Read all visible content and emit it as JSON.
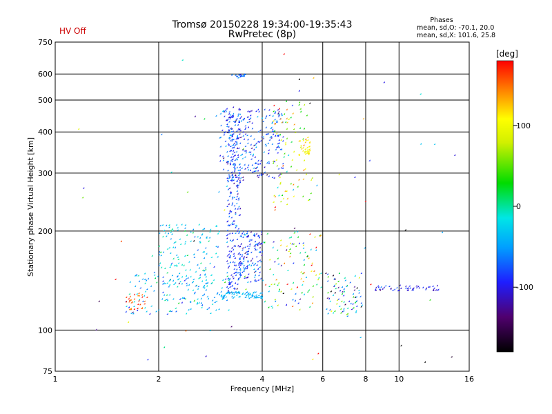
{
  "header": {
    "hv_status": "HV Off",
    "hv_color": "#cc0000",
    "title_line1": "Tromsø 20150228 19:34:00-19:35:43",
    "title_line2": "RwPretec (8p)"
  },
  "phases_box": {
    "label": "Phases",
    "line_o": "mean, sd,O: -70.1, 20.0",
    "line_x": "mean, sd,X: 101.6, 25.8"
  },
  "colorbar": {
    "unit_label": "[deg]",
    "min": -180,
    "max": 180,
    "ticks": [
      {
        "value": 100,
        "label": "100"
      },
      {
        "value": 0,
        "label": "0"
      },
      {
        "value": -100,
        "label": "-100"
      }
    ]
  },
  "chart_data": {
    "type": "scatter",
    "title": "Tromsø 20150228 19:34:00-19:35:43",
    "subtitle": "RwPretec (8p)",
    "xlabel": "Frequency [MHz]",
    "ylabel": "Stationary phase Virtual Height [km]",
    "xscale": "log",
    "yscale": "log",
    "xlim": [
      1,
      16
    ],
    "ylim": [
      75,
      750
    ],
    "grid": true,
    "xticks": [
      {
        "value": 1,
        "label": "1"
      },
      {
        "value": 2,
        "label": "2"
      },
      {
        "value": 4,
        "label": "4"
      },
      {
        "value": 6,
        "label": "6"
      },
      {
        "value": 8,
        "label": "8"
      },
      {
        "value": 10,
        "label": "10"
      },
      {
        "value": 16,
        "label": "16"
      }
    ],
    "yticks": [
      {
        "value": 75,
        "label": "75"
      },
      {
        "value": 100,
        "label": "100"
      },
      {
        "value": 200,
        "label": "200"
      },
      {
        "value": 300,
        "label": "300"
      },
      {
        "value": 400,
        "label": "400"
      },
      {
        "value": 500,
        "label": "500"
      },
      {
        "value": 600,
        "label": "600"
      },
      {
        "value": 750,
        "label": "750"
      }
    ],
    "color_by": "phase [deg]",
    "clusters": [
      {
        "name": "E-region low trace",
        "f_range": [
          1.6,
          3.2
        ],
        "h_range": [
          112,
          150
        ],
        "phase_mean": -40,
        "phase_sd": 30,
        "n": 150
      },
      {
        "name": "E orange patch",
        "f_range": [
          1.6,
          1.85
        ],
        "h_range": [
          115,
          130
        ],
        "phase_mean": 160,
        "phase_sd": 15,
        "n": 30
      },
      {
        "name": "F1 ramp",
        "f_range": [
          2.0,
          3.0
        ],
        "h_range": [
          135,
          210
        ],
        "phase_mean": -30,
        "phase_sd": 25,
        "n": 140
      },
      {
        "name": "Dense column 3.2-3.4 MHz",
        "f_range": [
          3.15,
          3.45
        ],
        "h_range": [
          130,
          480
        ],
        "phase_mean": -85,
        "phase_sd": 20,
        "n": 260
      },
      {
        "name": "F2 trace",
        "f_range": [
          3.0,
          4.6
        ],
        "h_range": [
          290,
          470
        ],
        "phase_mean": -80,
        "phase_sd": 25,
        "n": 260
      },
      {
        "name": "Cyan line ~128 km",
        "f_range": [
          3.0,
          4.0
        ],
        "h_range": [
          125,
          131
        ],
        "phase_mean": -40,
        "phase_sd": 10,
        "n": 80
      },
      {
        "name": "Column 3.4-4 MHz lower",
        "f_range": [
          3.4,
          4.0
        ],
        "h_range": [
          140,
          200
        ],
        "phase_mean": -80,
        "phase_sd": 25,
        "n": 140
      },
      {
        "name": "Cluster 3.4 MHz ~590 km",
        "f_range": [
          3.25,
          3.6
        ],
        "h_range": [
          585,
          600
        ],
        "phase_mean": -70,
        "phase_sd": 15,
        "n": 20
      },
      {
        "name": "Spread 4.3-5.6 MHz",
        "f_range": [
          4.3,
          5.6
        ],
        "h_range": [
          240,
          500
        ],
        "phase_mean": 80,
        "phase_sd": 60,
        "n": 90
      },
      {
        "name": "Yellow blob ~5.3 MHz",
        "f_range": [
          5.1,
          5.5
        ],
        "h_range": [
          340,
          380
        ],
        "phase_mean": 110,
        "phase_sd": 8,
        "n": 30
      },
      {
        "name": "Scattered 4-6 MHz low",
        "f_range": [
          4.0,
          6.0
        ],
        "h_range": [
          115,
          200
        ],
        "phase_mean": 20,
        "phase_sd": 90,
        "n": 110
      },
      {
        "name": "Spread 6-8 MHz",
        "f_range": [
          6.1,
          7.8
        ],
        "h_range": [
          110,
          150
        ],
        "phase_mean": -60,
        "phase_sd": 70,
        "n": 80
      },
      {
        "name": "Line ~135 km 8-13 MHz",
        "f_range": [
          8.5,
          13.0
        ],
        "h_range": [
          132,
          137
        ],
        "phase_mean": -100,
        "phase_sd": 20,
        "n": 50
      },
      {
        "name": "Sparse background",
        "f_range": [
          1.1,
          15.5
        ],
        "h_range": [
          80,
          700
        ],
        "phase_mean": 0,
        "phase_sd": 110,
        "n": 70
      }
    ]
  }
}
